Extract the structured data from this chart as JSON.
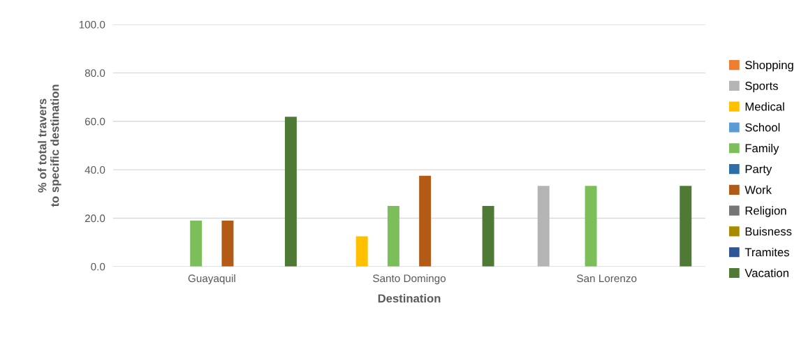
{
  "chart_data": {
    "type": "bar",
    "xlabel": "Destination",
    "ylabel": "% of total travers\nto specific destination",
    "categories": [
      "Guayaquil",
      "Santo Domingo",
      "San Lorenzo"
    ],
    "series": [
      {
        "name": "Shopping",
        "color": "#ed7d31",
        "values": [
          null,
          null,
          null
        ]
      },
      {
        "name": "Sports",
        "color": "#b4b4b4",
        "values": [
          null,
          null,
          33.3
        ]
      },
      {
        "name": "Medical",
        "color": "#ffc000",
        "values": [
          null,
          12.5,
          null
        ]
      },
      {
        "name": "School",
        "color": "#5b9bd5",
        "values": [
          null,
          null,
          null
        ]
      },
      {
        "name": "Family",
        "color": "#7cbf5a",
        "values": [
          19.0,
          25.0,
          33.3
        ]
      },
      {
        "name": "Party",
        "color": "#2e6ea6",
        "values": [
          null,
          null,
          null
        ]
      },
      {
        "name": "Work",
        "color": "#b35a17",
        "values": [
          19.0,
          37.5,
          null
        ]
      },
      {
        "name": "Religion",
        "color": "#767676",
        "values": [
          null,
          null,
          null
        ]
      },
      {
        "name": "Buisness",
        "color": "#a88a00",
        "values": [
          null,
          null,
          null
        ]
      },
      {
        "name": "Tramites",
        "color": "#2f5597",
        "values": [
          null,
          null,
          null
        ]
      },
      {
        "name": "Vacation",
        "color": "#4e7a35",
        "values": [
          61.9,
          25.0,
          33.3
        ]
      }
    ],
    "ylim": [
      0,
      100
    ],
    "yticks": [
      {
        "value": 0,
        "label": "0.0"
      },
      {
        "value": 20,
        "label": "20.0"
      },
      {
        "value": 40,
        "label": "40.0"
      },
      {
        "value": 60,
        "label": "60.0"
      },
      {
        "value": 80,
        "label": "80.0"
      },
      {
        "value": 100,
        "label": "100.0"
      }
    ],
    "grid": "y",
    "legend": "right"
  }
}
